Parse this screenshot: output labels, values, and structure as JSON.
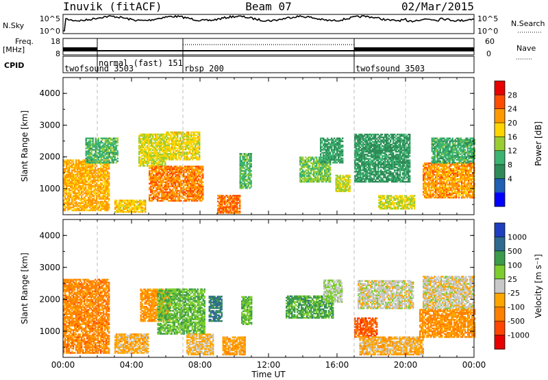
{
  "header": {
    "station": "Inuvik (fitACF)",
    "beam": "Beam 07",
    "date": "02/Mar/2015"
  },
  "top_panels": {
    "nsky_label": "N.Sky",
    "nsky_ticks": [
      "10^5",
      "10^0"
    ],
    "nsearch_label": "N.Search",
    "freq_label_1": "Freq.",
    "freq_label_2": "[MHz]",
    "freq_ticks": [
      "18",
      "8"
    ],
    "nave_ticks": [
      "60",
      "0"
    ],
    "nave_label": "Nave",
    "cpid_label": "CPID"
  },
  "cpid_segments": [
    {
      "name": "twofsound 3503",
      "start_hour": 0,
      "end_hour": 2
    },
    {
      "name": "normal (fast) 151",
      "start_hour": 2,
      "end_hour": 7
    },
    {
      "name": "rbsp 200",
      "start_hour": 7,
      "end_hour": 17
    },
    {
      "name": "twofsound 3503",
      "start_hour": 17,
      "end_hour": 24
    }
  ],
  "chart_data": [
    {
      "type": "heatmap",
      "title": "Power",
      "xlabel": "",
      "ylabel": "Slant Range [km]",
      "x_range_hours": [
        0,
        24
      ],
      "ylim": [
        180,
        4500
      ],
      "y_ticks": [
        1000,
        2000,
        3000,
        4000
      ],
      "colorbar_label": "Power [dB]",
      "colorbar_ticks": [
        "28",
        "24",
        "20",
        "16",
        "12",
        "8",
        "4"
      ],
      "colorbar_colors": [
        "#e60000",
        "#ff4d00",
        "#ff9900",
        "#ffd400",
        "#9acd32",
        "#3cb371",
        "#2e8b57",
        "#1f5fb4",
        "#0000ff"
      ],
      "scale_min": 0,
      "scale_max": 32,
      "regions": [
        {
          "t0": 0.0,
          "t1": 2.7,
          "r0": 300,
          "r1": 1900,
          "v": 22
        },
        {
          "t0": 1.3,
          "t1": 3.2,
          "r0": 1800,
          "r1": 2600,
          "v": 13
        },
        {
          "t0": 3.0,
          "t1": 4.8,
          "r0": 250,
          "r1": 650,
          "v": 20
        },
        {
          "t0": 4.4,
          "t1": 6.0,
          "r0": 1700,
          "r1": 2700,
          "v": 18
        },
        {
          "t0": 5.0,
          "t1": 8.2,
          "r0": 600,
          "r1": 1700,
          "v": 24
        },
        {
          "t0": 6.0,
          "t1": 8.0,
          "r0": 1900,
          "r1": 2800,
          "v": 19
        },
        {
          "t0": 9.0,
          "t1": 10.3,
          "r0": 220,
          "r1": 800,
          "v": 25
        },
        {
          "t0": 10.3,
          "t1": 11.0,
          "r0": 1000,
          "r1": 2100,
          "v": 13
        },
        {
          "t0": 13.8,
          "t1": 15.6,
          "r0": 1200,
          "r1": 2000,
          "v": 15
        },
        {
          "t0": 15.0,
          "t1": 16.3,
          "r0": 1800,
          "r1": 2600,
          "v": 11
        },
        {
          "t0": 15.9,
          "t1": 16.7,
          "r0": 900,
          "r1": 1400,
          "v": 17
        },
        {
          "t0": 17.0,
          "t1": 20.2,
          "r0": 1200,
          "r1": 2700,
          "v": 10
        },
        {
          "t0": 18.4,
          "t1": 20.5,
          "r0": 350,
          "r1": 800,
          "v": 18
        },
        {
          "t0": 21.0,
          "t1": 24.0,
          "r0": 700,
          "r1": 1800,
          "v": 23
        },
        {
          "t0": 21.5,
          "t1": 24.0,
          "r0": 1800,
          "r1": 2600,
          "v": 12
        }
      ]
    },
    {
      "type": "heatmap",
      "title": "Velocity",
      "xlabel": "Time UT",
      "ylabel": "Slant Range [km]",
      "x_range_hours": [
        0,
        24
      ],
      "ylim": [
        180,
        4500
      ],
      "y_ticks": [
        1000,
        2000,
        3000,
        4000
      ],
      "x_ticks": [
        "00:00",
        "04:00",
        "08:00",
        "12:00",
        "16:00",
        "20:00",
        "00:00"
      ],
      "colorbar_label": "Velocity [m s⁻¹]",
      "colorbar_ticks": [
        "1000",
        "500",
        "100",
        "25",
        "-25",
        "-100",
        "-500",
        "-1000"
      ],
      "colorbar_colors": [
        "#1f3fbf",
        "#2e6b8f",
        "#3c9a4b",
        "#7ccd2e",
        "#c8c8c8",
        "#ffa500",
        "#ff7f00",
        "#ff4500",
        "#e60000"
      ],
      "scale_min": -1000,
      "scale_max": 1000,
      "regions": [
        {
          "t0": 0.0,
          "t1": 2.7,
          "r0": 300,
          "r1": 2600,
          "v": -400
        },
        {
          "t0": 3.0,
          "t1": 5.0,
          "r0": 300,
          "r1": 900,
          "v": -200
        },
        {
          "t0": 4.5,
          "t1": 6.2,
          "r0": 1300,
          "r1": 2300,
          "v": -300
        },
        {
          "t0": 5.5,
          "t1": 8.3,
          "r0": 900,
          "r1": 2300,
          "v": 300
        },
        {
          "t0": 7.2,
          "t1": 8.8,
          "r0": 250,
          "r1": 900,
          "v": -150
        },
        {
          "t0": 8.5,
          "t1": 9.3,
          "r0": 1300,
          "r1": 2100,
          "v": 600
        },
        {
          "t0": 9.3,
          "t1": 10.6,
          "r0": 250,
          "r1": 800,
          "v": -250
        },
        {
          "t0": 10.4,
          "t1": 11.0,
          "r0": 1200,
          "r1": 2100,
          "v": 300
        },
        {
          "t0": 13.0,
          "t1": 15.8,
          "r0": 1400,
          "r1": 2100,
          "v": 400
        },
        {
          "t0": 15.2,
          "t1": 16.3,
          "r0": 1900,
          "r1": 2600,
          "v": 100
        },
        {
          "t0": 17.0,
          "t1": 18.3,
          "r0": 800,
          "r1": 1400,
          "v": -600
        },
        {
          "t0": 17.2,
          "t1": 20.4,
          "r0": 1700,
          "r1": 2600,
          "v": 0
        },
        {
          "t0": 17.3,
          "t1": 21.0,
          "r0": 250,
          "r1": 800,
          "v": -200
        },
        {
          "t0": 20.8,
          "t1": 24.0,
          "r0": 800,
          "r1": 1700,
          "v": -350
        },
        {
          "t0": 21.0,
          "t1": 24.0,
          "r0": 1700,
          "r1": 2700,
          "v": -30
        }
      ]
    }
  ]
}
